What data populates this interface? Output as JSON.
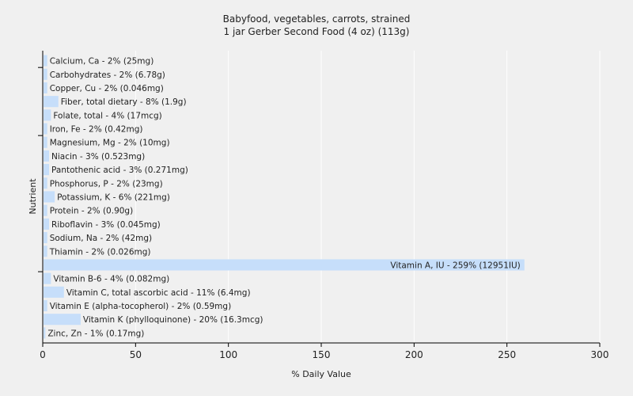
{
  "chart_data": {
    "type": "bar",
    "orientation": "horizontal",
    "title": "Babyfood, vegetables, carrots, strained",
    "subtitle": "1 jar Gerber Second Food (4 oz) (113g)",
    "xlabel": "% Daily Value",
    "ylabel": "Nutrient",
    "xlim": [
      0,
      300
    ],
    "xticks": [
      0,
      50,
      100,
      150,
      200,
      250,
      300
    ],
    "grid": true,
    "bar_color": "#c6defa",
    "categories": [
      "Calcium, Ca",
      "Carbohydrates",
      "Copper, Cu",
      "Fiber, total dietary",
      "Folate, total",
      "Iron, Fe",
      "Magnesium, Mg",
      "Niacin",
      "Pantothenic acid",
      "Phosphorus, P",
      "Potassium, K",
      "Protein",
      "Riboflavin",
      "Sodium, Na",
      "Thiamin",
      "Vitamin A, IU",
      "Vitamin B-6",
      "Vitamin C, total ascorbic acid",
      "Vitamin E (alpha-tocopherol)",
      "Vitamin K (phylloquinone)",
      "Zinc, Zn"
    ],
    "values": [
      2,
      2,
      2,
      8,
      4,
      2,
      2,
      3,
      3,
      2,
      6,
      2,
      3,
      2,
      2,
      259,
      4,
      11,
      2,
      20,
      1
    ],
    "labels": [
      "Calcium, Ca - 2% (25mg)",
      "Carbohydrates - 2% (6.78g)",
      "Copper, Cu - 2% (0.046mg)",
      "Fiber, total dietary - 8% (1.9g)",
      "Folate, total - 4% (17mcg)",
      "Iron, Fe - 2% (0.42mg)",
      "Magnesium, Mg - 2% (10mg)",
      "Niacin - 3% (0.523mg)",
      "Pantothenic acid - 3% (0.271mg)",
      "Phosphorus, P - 2% (23mg)",
      "Potassium, K - 6% (221mg)",
      "Protein - 2% (0.90g)",
      "Riboflavin - 3% (0.045mg)",
      "Sodium, Na - 2% (42mg)",
      "Thiamin - 2% (0.026mg)",
      "Vitamin A, IU - 259% (12951IU)",
      "Vitamin B-6 - 4% (0.082mg)",
      "Vitamin C, total ascorbic acid - 11% (6.4mg)",
      "Vitamin E (alpha-tocopherol) - 2% (0.59mg)",
      "Vitamin K (phylloquinone) - 20% (16.3mcg)",
      "Zinc, Zn - 1% (0.17mg)"
    ]
  }
}
